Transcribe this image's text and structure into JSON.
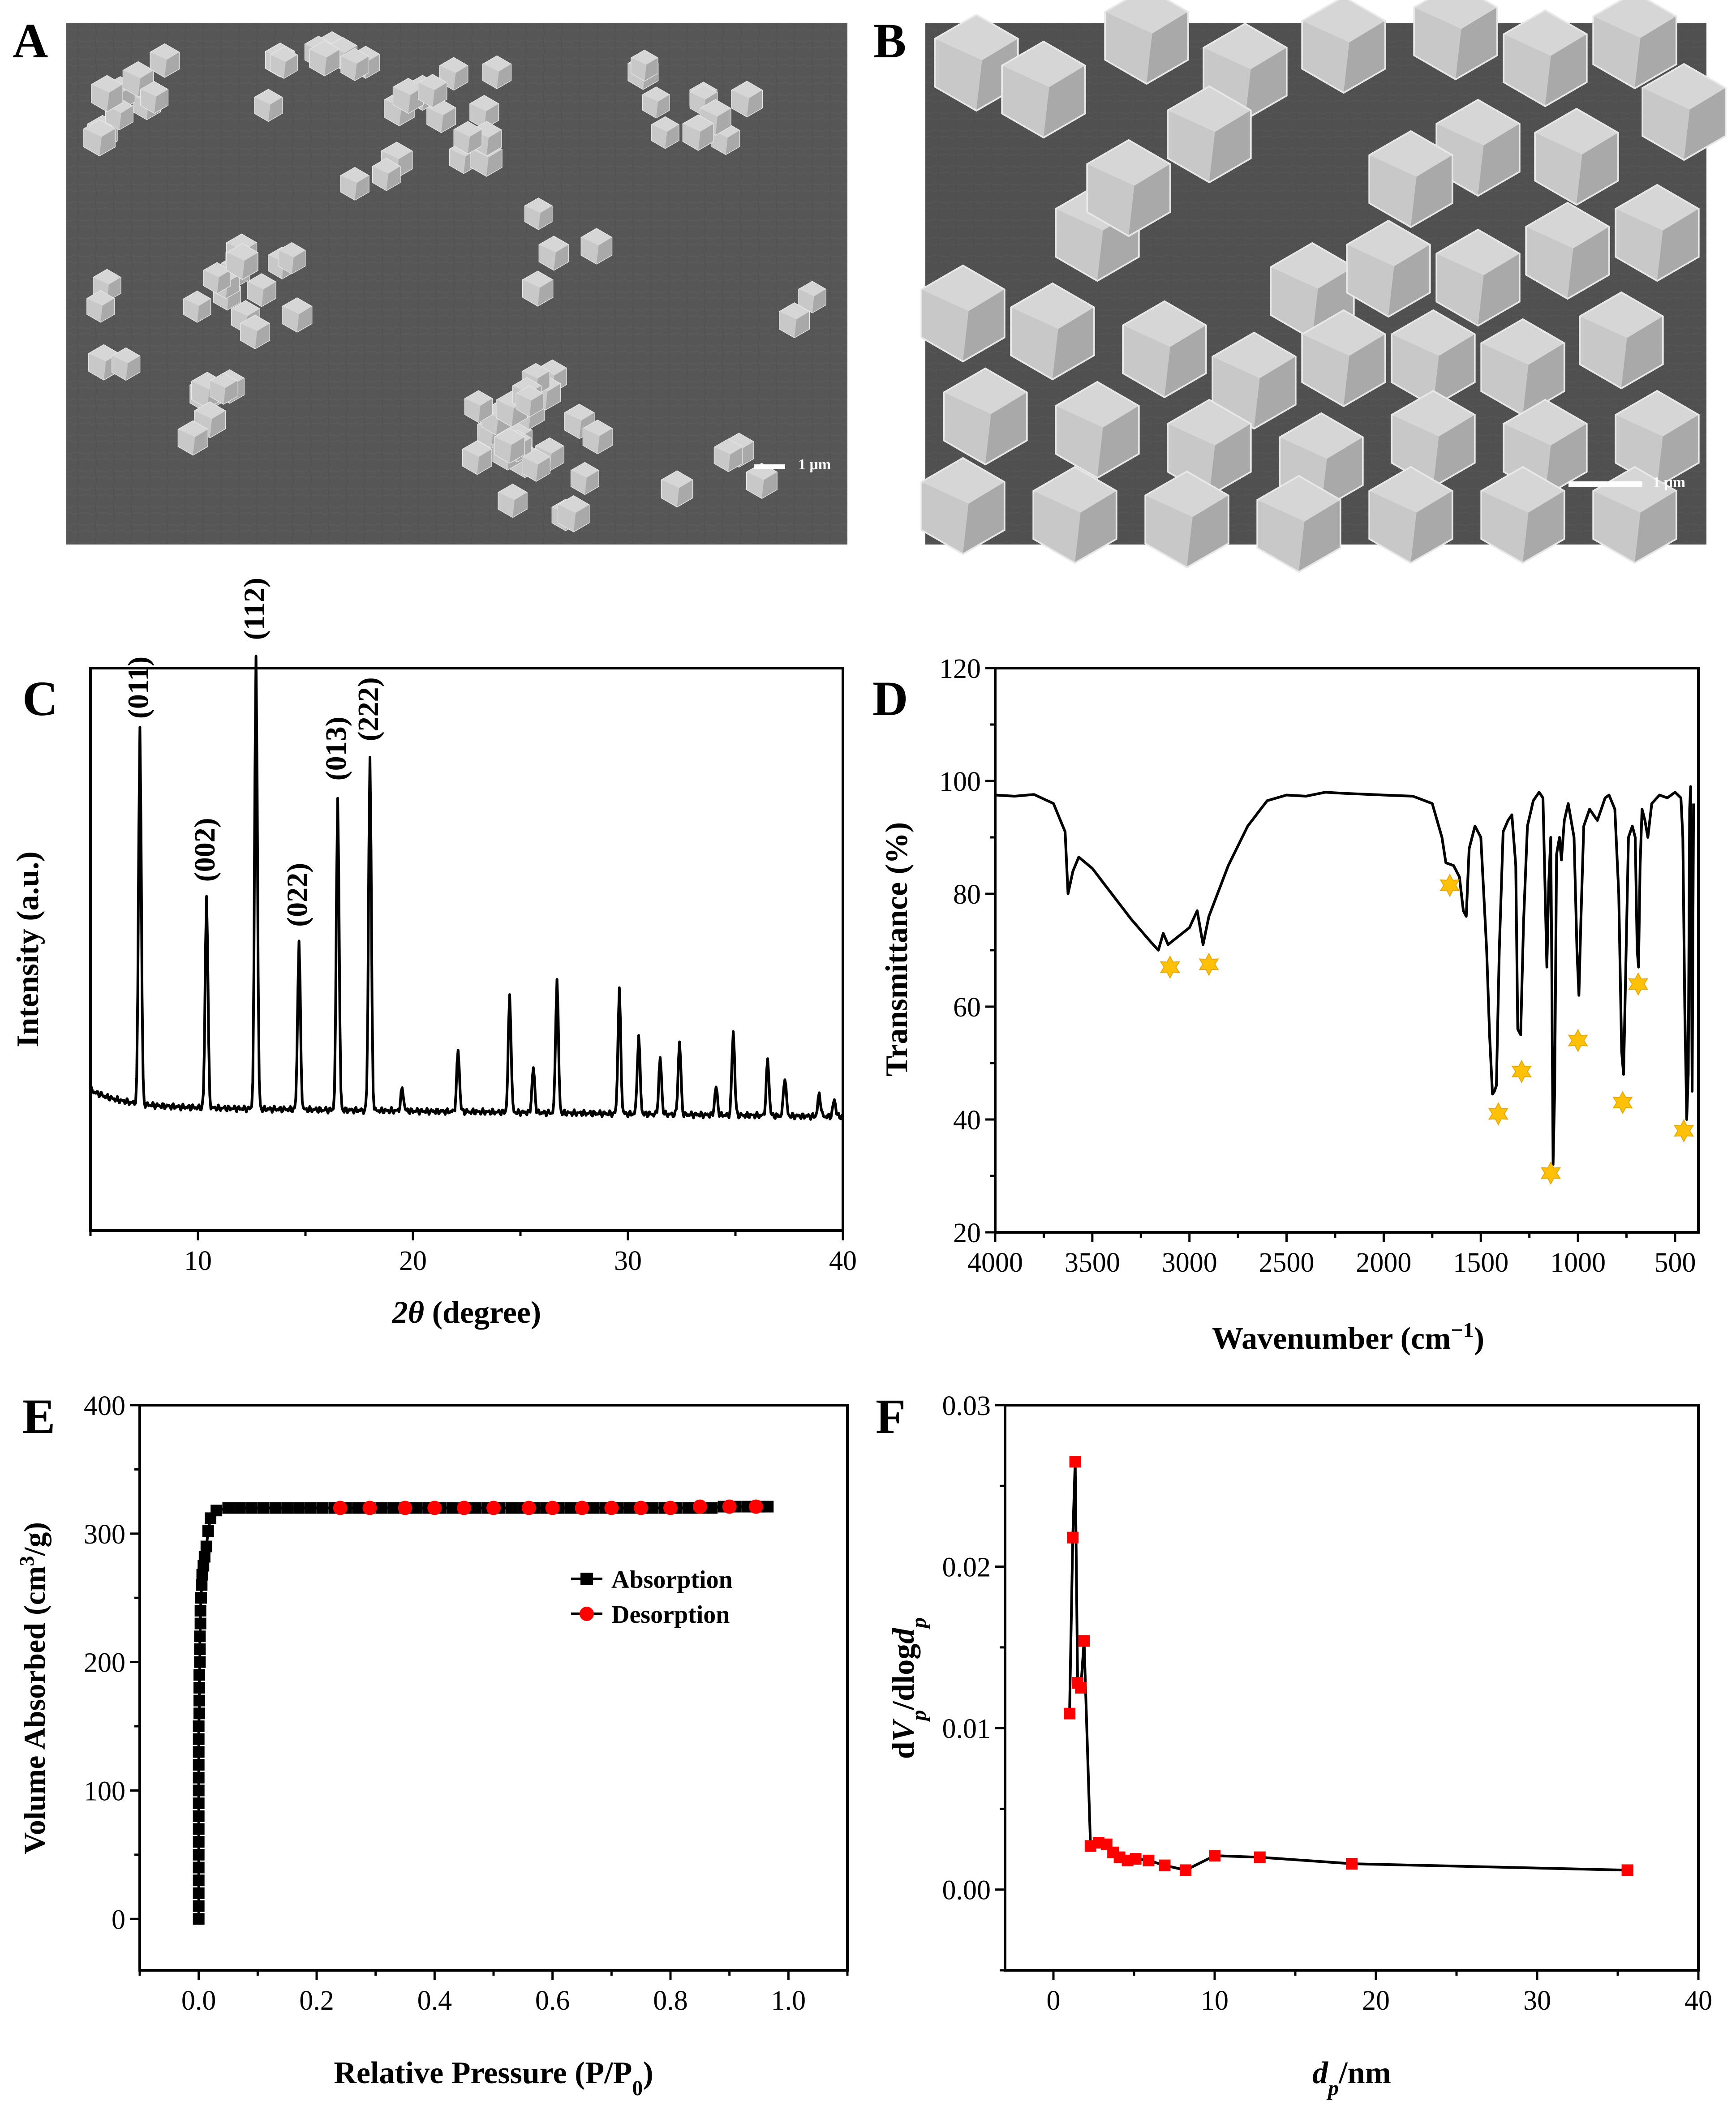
{
  "panels": {
    "A": {
      "letter": "A",
      "scale_bar": "1 μm"
    },
    "B": {
      "letter": "B",
      "scale_bar": "1 μm"
    },
    "C": {
      "letter": "C"
    },
    "D": {
      "letter": "D"
    },
    "E": {
      "letter": "E"
    },
    "F": {
      "letter": "F"
    }
  },
  "chart_data": [
    {
      "id": "C",
      "type": "line",
      "title": "",
      "xlabel": "2θ (degree)",
      "ylabel": "Intensity (a.u.)",
      "xlim": [
        5,
        40
      ],
      "ylim": [
        0,
        100
      ],
      "xticks": [
        10,
        20,
        30,
        40
      ],
      "baseline": 22,
      "peaks": [
        {
          "x": 7.3,
          "h": 67,
          "label": "(011)"
        },
        {
          "x": 10.4,
          "h": 38,
          "label": "(002)"
        },
        {
          "x": 12.7,
          "h": 81,
          "label": "(112)"
        },
        {
          "x": 14.7,
          "h": 30,
          "label": "(022)"
        },
        {
          "x": 16.5,
          "h": 56,
          "label": "(013)"
        },
        {
          "x": 18.0,
          "h": 63,
          "label": "(222)"
        },
        {
          "x": 19.5,
          "h": 4
        },
        {
          "x": 22.1,
          "h": 11
        },
        {
          "x": 24.5,
          "h": 21
        },
        {
          "x": 25.6,
          "h": 8
        },
        {
          "x": 26.7,
          "h": 24
        },
        {
          "x": 29.6,
          "h": 22
        },
        {
          "x": 30.5,
          "h": 14
        },
        {
          "x": 31.5,
          "h": 10
        },
        {
          "x": 32.4,
          "h": 13
        },
        {
          "x": 34.1,
          "h": 5
        },
        {
          "x": 34.9,
          "h": 15
        },
        {
          "x": 36.5,
          "h": 10
        },
        {
          "x": 37.3,
          "h": 7
        },
        {
          "x": 38.9,
          "h": 4
        },
        {
          "x": 39.6,
          "h": 3
        }
      ]
    },
    {
      "id": "D",
      "type": "line",
      "title": "",
      "xlabel": "Wavenumber (cm⁻¹)",
      "ylabel": "Transmittance (%)",
      "xlim": [
        4000,
        380
      ],
      "ylim": [
        20,
        120
      ],
      "xticks": [
        4000,
        3500,
        3000,
        2500,
        2000,
        1500,
        1000,
        500
      ],
      "yticks": [
        20,
        40,
        60,
        80,
        100,
        120
      ],
      "points": [
        [
          4000,
          97.5
        ],
        [
          3900,
          97.3
        ],
        [
          3800,
          97.6
        ],
        [
          3700,
          96.0
        ],
        [
          3640,
          91.0
        ],
        [
          3625,
          80.0
        ],
        [
          3600,
          84.0
        ],
        [
          3570,
          86.5
        ],
        [
          3500,
          84.5
        ],
        [
          3400,
          80.0
        ],
        [
          3300,
          75.5
        ],
        [
          3200,
          71.5
        ],
        [
          3160,
          70.0
        ],
        [
          3135,
          73.0
        ],
        [
          3110,
          71.0
        ],
        [
          3000,
          74.0
        ],
        [
          2960,
          77.0
        ],
        [
          2930,
          71.0
        ],
        [
          2900,
          76.0
        ],
        [
          2800,
          85.0
        ],
        [
          2700,
          92.0
        ],
        [
          2600,
          96.5
        ],
        [
          2500,
          97.5
        ],
        [
          2400,
          97.3
        ],
        [
          2300,
          98.0
        ],
        [
          2200,
          97.8
        ],
        [
          2000,
          97.5
        ],
        [
          1850,
          97.3
        ],
        [
          1750,
          96.0
        ],
        [
          1700,
          90.0
        ],
        [
          1680,
          85.5
        ],
        [
          1640,
          85.0
        ],
        [
          1610,
          83.0
        ],
        [
          1590,
          77.0
        ],
        [
          1575,
          76.0
        ],
        [
          1560,
          88.0
        ],
        [
          1530,
          92.0
        ],
        [
          1500,
          90.0
        ],
        [
          1470,
          70.0
        ],
        [
          1455,
          55.0
        ],
        [
          1440,
          44.5
        ],
        [
          1430,
          45.0
        ],
        [
          1420,
          46.0
        ],
        [
          1405,
          70.0
        ],
        [
          1385,
          91.0
        ],
        [
          1360,
          93.0
        ],
        [
          1340,
          94.0
        ],
        [
          1320,
          85.0
        ],
        [
          1310,
          56.0
        ],
        [
          1295,
          55.0
        ],
        [
          1280,
          75.0
        ],
        [
          1260,
          92.0
        ],
        [
          1230,
          96.5
        ],
        [
          1200,
          98.0
        ],
        [
          1180,
          97.0
        ],
        [
          1170,
          82.0
        ],
        [
          1160,
          67.0
        ],
        [
          1150,
          82.0
        ],
        [
          1140,
          90.0
        ],
        [
          1135,
          68.0
        ],
        [
          1128,
          32.0
        ],
        [
          1120,
          45.0
        ],
        [
          1110,
          87.0
        ],
        [
          1095,
          90.0
        ],
        [
          1085,
          86.0
        ],
        [
          1070,
          93.0
        ],
        [
          1050,
          96.0
        ],
        [
          1020,
          90.0
        ],
        [
          1005,
          70.0
        ],
        [
          995,
          62.0
        ],
        [
          985,
          75.0
        ],
        [
          970,
          92.0
        ],
        [
          940,
          95.0
        ],
        [
          900,
          93.0
        ],
        [
          860,
          97.0
        ],
        [
          840,
          97.5
        ],
        [
          810,
          95.0
        ],
        [
          790,
          80.0
        ],
        [
          775,
          52.0
        ],
        [
          765,
          48.0
        ],
        [
          755,
          65.0
        ],
        [
          740,
          90.0
        ],
        [
          720,
          92.0
        ],
        [
          705,
          90.0
        ],
        [
          695,
          70.0
        ],
        [
          688,
          67.0
        ],
        [
          680,
          85.0
        ],
        [
          670,
          95.0
        ],
        [
          655,
          93.0
        ],
        [
          640,
          90.0
        ],
        [
          620,
          96.0
        ],
        [
          580,
          97.5
        ],
        [
          540,
          97.0
        ],
        [
          500,
          98.0
        ],
        [
          470,
          97.0
        ],
        [
          460,
          90.0
        ],
        [
          450,
          60.0
        ],
        [
          440,
          40.0
        ],
        [
          432,
          48.0
        ],
        [
          425,
          95.0
        ],
        [
          420,
          99.0
        ],
        [
          412,
          45.0
        ],
        [
          405,
          96.0
        ]
      ],
      "markers": [
        {
          "x": 3100,
          "y": 67
        },
        {
          "x": 2900,
          "y": 67.5
        },
        {
          "x": 1660,
          "y": 81.5
        },
        {
          "x": 1410,
          "y": 41
        },
        {
          "x": 1290,
          "y": 48.5
        },
        {
          "x": 1140,
          "y": 30.5
        },
        {
          "x": 1000,
          "y": 54
        },
        {
          "x": 770,
          "y": 43
        },
        {
          "x": 690,
          "y": 64
        },
        {
          "x": 455,
          "y": 38
        }
      ]
    },
    {
      "id": "E",
      "type": "scatter",
      "title": "",
      "xlabel": "Relative Pressure (P/P₀)",
      "ylabel": "Volume Absorbed (cm³/g)",
      "xlim": [
        -0.1,
        1.1
      ],
      "ylim": [
        -40,
        400
      ],
      "xticks": [
        0.0,
        0.2,
        0.4,
        0.6,
        0.8,
        1.0
      ],
      "yticks": [
        0,
        100,
        200,
        300,
        400
      ],
      "legend": [
        "Absorption",
        "Desorption"
      ],
      "series": [
        {
          "name": "Absorption",
          "color": "#000000",
          "marker": "square",
          "points": [
            [
              0.0,
              0
            ],
            [
              0.0,
              10
            ],
            [
              0.0,
              20
            ],
            [
              0.0,
              30
            ],
            [
              0.0,
              40
            ],
            [
              0.0,
              50
            ],
            [
              0.0,
              60
            ],
            [
              0.0,
              70
            ],
            [
              0.0,
              80
            ],
            [
              0.0,
              90
            ],
            [
              0.0,
              100
            ],
            [
              0.0,
              110
            ],
            [
              0.0,
              120
            ],
            [
              0.0,
              130
            ],
            [
              0.0,
              140
            ],
            [
              0.0,
              150
            ],
            [
              0.001,
              160
            ],
            [
              0.001,
              170
            ],
            [
              0.001,
              180
            ],
            [
              0.001,
              190
            ],
            [
              0.002,
              200
            ],
            [
              0.002,
              210
            ],
            [
              0.002,
              220
            ],
            [
              0.003,
              230
            ],
            [
              0.003,
              240
            ],
            [
              0.004,
              250
            ],
            [
              0.005,
              260
            ],
            [
              0.006,
              268
            ],
            [
              0.008,
              275
            ],
            [
              0.01,
              282
            ],
            [
              0.013,
              290
            ],
            [
              0.016,
              302
            ],
            [
              0.02,
              312
            ],
            [
              0.03,
              318
            ],
            [
              0.05,
              320
            ],
            [
              0.07,
              320
            ],
            [
              0.09,
              320
            ],
            [
              0.11,
              320
            ],
            [
              0.13,
              320
            ],
            [
              0.15,
              320
            ],
            [
              0.17,
              320
            ],
            [
              0.19,
              320
            ],
            [
              0.21,
              320
            ],
            [
              0.23,
              320
            ],
            [
              0.25,
              320
            ],
            [
              0.27,
              320
            ],
            [
              0.29,
              320
            ],
            [
              0.31,
              320
            ],
            [
              0.33,
              320
            ],
            [
              0.35,
              320
            ],
            [
              0.37,
              320
            ],
            [
              0.39,
              320
            ],
            [
              0.41,
              320
            ],
            [
              0.43,
              320
            ],
            [
              0.45,
              320
            ],
            [
              0.47,
              320
            ],
            [
              0.49,
              320
            ],
            [
              0.51,
              320
            ],
            [
              0.53,
              320
            ],
            [
              0.55,
              320
            ],
            [
              0.57,
              320
            ],
            [
              0.59,
              320
            ],
            [
              0.61,
              320
            ],
            [
              0.63,
              320
            ],
            [
              0.65,
              320
            ],
            [
              0.67,
              320
            ],
            [
              0.69,
              320
            ],
            [
              0.71,
              320
            ],
            [
              0.73,
              320
            ],
            [
              0.75,
              320
            ],
            [
              0.77,
              320
            ],
            [
              0.79,
              320
            ],
            [
              0.81,
              320
            ],
            [
              0.83,
              320
            ],
            [
              0.85,
              320
            ],
            [
              0.87,
              320
            ],
            [
              0.89,
              321
            ],
            [
              0.91,
              321
            ],
            [
              0.93,
              321
            ],
            [
              0.95,
              321
            ],
            [
              0.965,
              321
            ]
          ]
        },
        {
          "name": "Desorption",
          "color": "#ff0000",
          "marker": "circle",
          "points": [
            [
              0.24,
              320
            ],
            [
              0.29,
              320
            ],
            [
              0.35,
              320
            ],
            [
              0.4,
              320
            ],
            [
              0.45,
              320
            ],
            [
              0.5,
              320
            ],
            [
              0.56,
              320
            ],
            [
              0.6,
              320
            ],
            [
              0.65,
              320
            ],
            [
              0.7,
              320
            ],
            [
              0.75,
              320
            ],
            [
              0.8,
              320
            ],
            [
              0.85,
              321
            ],
            [
              0.9,
              321
            ],
            [
              0.945,
              321
            ]
          ]
        }
      ]
    },
    {
      "id": "F",
      "type": "line",
      "title": "",
      "xlabel": "dp/nm",
      "ylabel": "dVp/dlogdp",
      "xlim": [
        -3,
        40
      ],
      "ylim": [
        -0.005,
        0.03
      ],
      "xticks": [
        0,
        10,
        20,
        30,
        40
      ],
      "yticks": [
        "0.00",
        "0.01",
        "0.02",
        "0.03"
      ],
      "line_color": "#000000",
      "marker_color": "#ff0000",
      "points": [
        [
          1.0,
          0.0109
        ],
        [
          1.2,
          0.0218
        ],
        [
          1.35,
          0.0265
        ],
        [
          1.5,
          0.0128
        ],
        [
          1.7,
          0.0125
        ],
        [
          1.9,
          0.0154
        ],
        [
          2.3,
          0.0027
        ],
        [
          2.8,
          0.0029
        ],
        [
          3.3,
          0.0028
        ],
        [
          3.7,
          0.0023
        ],
        [
          4.1,
          0.002
        ],
        [
          4.6,
          0.0018
        ],
        [
          5.1,
          0.0019
        ],
        [
          5.9,
          0.0018
        ],
        [
          6.9,
          0.0015
        ],
        [
          8.2,
          0.0012
        ],
        [
          10.0,
          0.0021
        ],
        [
          12.8,
          0.002
        ],
        [
          18.5,
          0.0016
        ],
        [
          35.6,
          0.0012
        ]
      ]
    }
  ]
}
